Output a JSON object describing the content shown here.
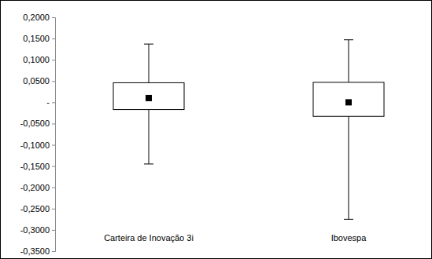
{
  "chart_data": {
    "type": "box",
    "categories": [
      "Carteira de Inovação 3i",
      "Ibovespa"
    ],
    "whisker_low": [
      -0.145,
      -0.275
    ],
    "q1": [
      -0.017,
      -0.033
    ],
    "mean": [
      0.01,
      0.0
    ],
    "q3": [
      0.046,
      0.047
    ],
    "whisker_high": [
      0.137,
      0.147
    ],
    "ylim": [
      -0.35,
      0.2
    ],
    "yticks": [
      {
        "value": 0.2,
        "label": "0,2000"
      },
      {
        "value": 0.15,
        "label": "0,1500"
      },
      {
        "value": 0.1,
        "label": "0,1000"
      },
      {
        "value": 0.05,
        "label": "0,0500"
      },
      {
        "value": 0,
        "label": "-"
      },
      {
        "value": -0.05,
        "label": "-0,0500"
      },
      {
        "value": -0.1,
        "label": "-0,1000"
      },
      {
        "value": -0.15,
        "label": "-0,1500"
      },
      {
        "value": -0.2,
        "label": "-0,2000"
      },
      {
        "value": -0.25,
        "label": "-0,2500"
      },
      {
        "value": -0.3,
        "label": "-0,3000"
      },
      {
        "value": -0.35,
        "label": "-0,3500"
      }
    ],
    "grid": false
  }
}
